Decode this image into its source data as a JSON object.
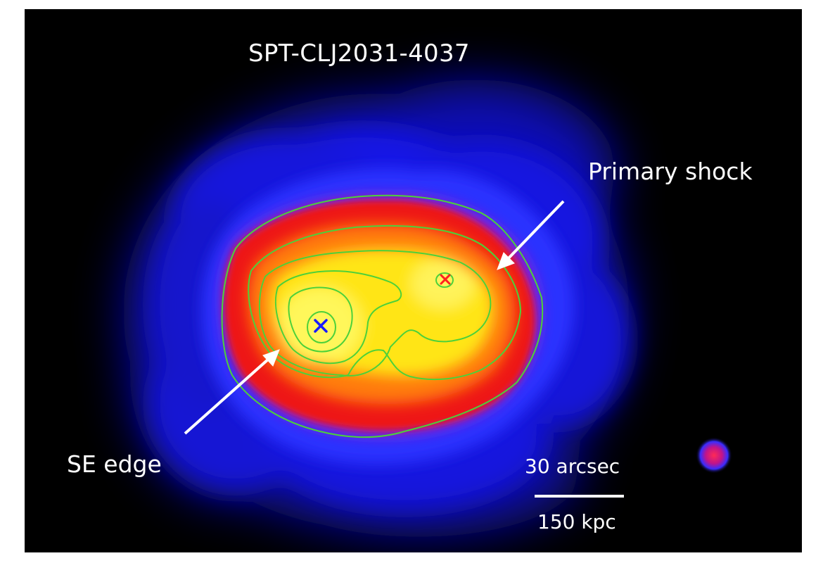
{
  "title": "SPT-CLJ2031-4037",
  "annotations": {
    "primary_shock": "Primary shock",
    "se_edge": "SE edge"
  },
  "scale_bar": {
    "angular": "30 arcsec",
    "physical": "150 kpc"
  },
  "markers": {
    "primary_peak_color": "#1a1aff",
    "secondary_peak_color": "#ff2020"
  },
  "colors": {
    "background": "#000000",
    "contour": "#4cd13a",
    "text": "#ffffff",
    "arrow": "#ffffff"
  }
}
